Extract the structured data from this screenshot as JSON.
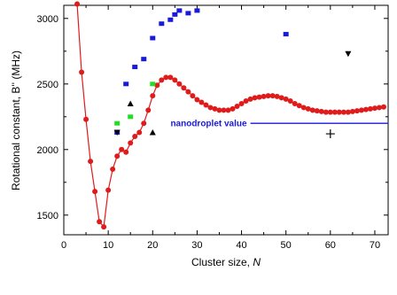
{
  "chart_data": {
    "type": "scatter",
    "xlabel": "Cluster size, N",
    "ylabel": "Rotational constant, B'' (MHz)",
    "xlim": [
      0,
      73
    ],
    "ylim": [
      1350,
      3100
    ],
    "x_ticks": [
      "0",
      "10",
      "20",
      "30",
      "40",
      "50",
      "60",
      "70"
    ],
    "y_ticks": [
      "1500",
      "2000",
      "2500",
      "3000"
    ],
    "grid": false,
    "annotation": {
      "text": "nanodroplet value",
      "y": 2200,
      "x_start": 42,
      "x_end": 73,
      "color": "#1a1adc"
    },
    "series": [
      {
        "marker": "circle-line",
        "color": "#e01b1b",
        "x": [
          3,
          4,
          5,
          6,
          7,
          8,
          9,
          10,
          11,
          12,
          13,
          14,
          15,
          16,
          17,
          18,
          19,
          20,
          21,
          22,
          23,
          24,
          25,
          26,
          27,
          28,
          29,
          30,
          31,
          32,
          33,
          34,
          35,
          36,
          37,
          38,
          39,
          40,
          41,
          42,
          43,
          44,
          45,
          46,
          47,
          48,
          49,
          50,
          51,
          52,
          53,
          54,
          55,
          56,
          57,
          58,
          59,
          60,
          61,
          62,
          63,
          64,
          65,
          66,
          67,
          68,
          69,
          70,
          71,
          72
        ],
        "y": [
          3110,
          2590,
          2230,
          1910,
          1680,
          1450,
          1410,
          1690,
          1850,
          1950,
          2000,
          1980,
          2050,
          2100,
          2130,
          2200,
          2300,
          2410,
          2490,
          2530,
          2550,
          2550,
          2530,
          2500,
          2470,
          2440,
          2410,
          2380,
          2360,
          2340,
          2320,
          2310,
          2300,
          2300,
          2300,
          2310,
          2330,
          2350,
          2370,
          2385,
          2395,
          2400,
          2405,
          2410,
          2410,
          2405,
          2395,
          2385,
          2370,
          2350,
          2335,
          2320,
          2310,
          2300,
          2295,
          2290,
          2285,
          2285,
          2285,
          2285,
          2285,
          2285,
          2290,
          2295,
          2300,
          2305,
          2310,
          2315,
          2320,
          2325
        ]
      },
      {
        "marker": "square",
        "color": "#1a1adc",
        "x": [
          12,
          14,
          16,
          18,
          20,
          22,
          24,
          25,
          26,
          28,
          30,
          50
        ],
        "y": [
          2130,
          2500,
          2630,
          2690,
          2850,
          2960,
          2990,
          3030,
          3060,
          3040,
          3060,
          2880
        ]
      },
      {
        "marker": "square",
        "color": "#22dd22",
        "x": [
          12,
          15,
          20
        ],
        "y": [
          2200,
          2250,
          2500
        ]
      },
      {
        "marker": "triangle-up",
        "color": "#000000",
        "x": [
          15,
          20
        ],
        "y": [
          2350,
          2130
        ]
      },
      {
        "marker": "triangle-down",
        "color": "#000000",
        "x": [
          12,
          64
        ],
        "y": [
          2130,
          2730
        ]
      },
      {
        "marker": "plus",
        "color": "#000000",
        "x": [
          60
        ],
        "y": [
          2120
        ]
      }
    ]
  }
}
